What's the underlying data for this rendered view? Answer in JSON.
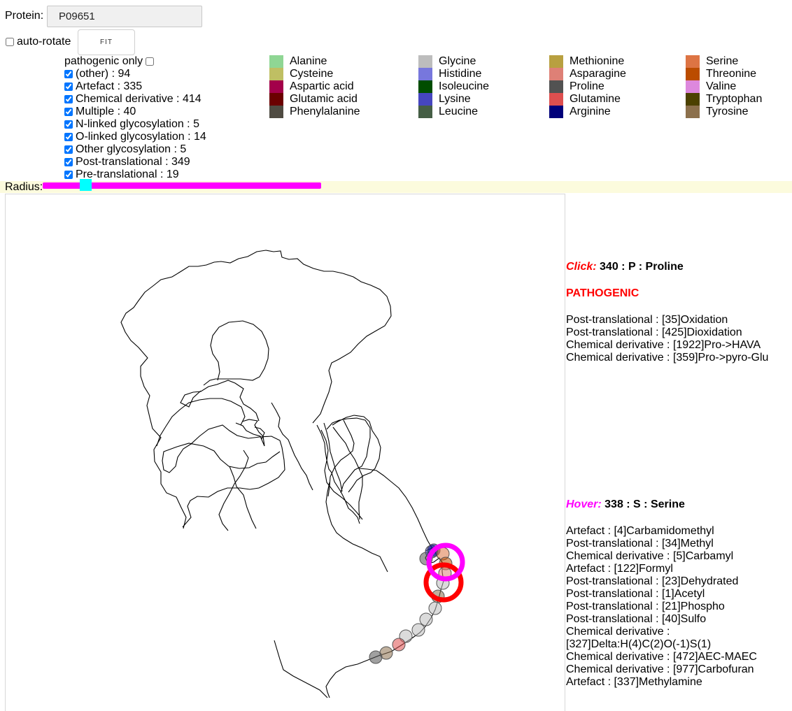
{
  "protein": {
    "label": "Protein:",
    "value": "P09651"
  },
  "autorotate": {
    "label": "auto-rotate",
    "checked": false
  },
  "fit_button": {
    "label": "FIT"
  },
  "filters": {
    "pathogenic_only_label": "pathogenic only",
    "items": [
      {
        "label": "(other) : 94",
        "checked": true
      },
      {
        "label": "Artefact : 335",
        "checked": true
      },
      {
        "label": "Chemical derivative : 414",
        "checked": true
      },
      {
        "label": "Multiple : 40",
        "checked": true
      },
      {
        "label": "N-linked glycosylation : 5",
        "checked": true
      },
      {
        "label": "O-linked glycosylation : 14",
        "checked": true
      },
      {
        "label": "Other glycosylation : 5",
        "checked": true
      },
      {
        "label": "Post-translational : 349",
        "checked": true
      },
      {
        "label": "Pre-translational : 19",
        "checked": true
      }
    ]
  },
  "legend": {
    "amino_acids": [
      {
        "name": "Alanine",
        "color": "#8fd694"
      },
      {
        "name": "Cysteine",
        "color": "#bfbf63"
      },
      {
        "name": "Aspartic acid",
        "color": "#a3004a"
      },
      {
        "name": "Glutamic acid",
        "color": "#6b0000"
      },
      {
        "name": "Phenylalanine",
        "color": "#4f4b42"
      },
      {
        "name": "Glycine",
        "color": "#bdbdbd"
      },
      {
        "name": "Histidine",
        "color": "#7777dd"
      },
      {
        "name": "Isoleucine",
        "color": "#004d00"
      },
      {
        "name": "Lysine",
        "color": "#4646bf"
      },
      {
        "name": "Leucine",
        "color": "#455e45"
      },
      {
        "name": "Methionine",
        "color": "#b8a040"
      },
      {
        "name": "Asparagine",
        "color": "#de8076"
      },
      {
        "name": "Proline",
        "color": "#525252"
      },
      {
        "name": "Glutamine",
        "color": "#de4f4f"
      },
      {
        "name": "Arginine",
        "color": "#00007a"
      },
      {
        "name": "Serine",
        "color": "#dd7444"
      },
      {
        "name": "Threonine",
        "color": "#bb4c00"
      },
      {
        "name": "Valine",
        "color": "#dd88dd"
      },
      {
        "name": "Tryptophan",
        "color": "#4c4100"
      },
      {
        "name": "Tyrosine",
        "color": "#8c704c"
      }
    ]
  },
  "radius": {
    "label": "Radius:",
    "value_fraction": 0.16
  },
  "click_info": {
    "tag": "Click:",
    "residue": "340 : P : Proline",
    "pathogenic": "PATHOGENIC",
    "mods": [
      "Post-translational : [35]Oxidation",
      "Post-translational : [425]Dioxidation",
      "Chemical derivative : [1922]Pro->HAVA",
      "Chemical derivative : [359]Pro->pyro-Glu"
    ]
  },
  "hover_info": {
    "tag": "Hover:",
    "residue": "338 : S : Serine",
    "mods": [
      "Artefact : [4]Carbamidomethyl",
      "Post-translational : [34]Methyl",
      "Chemical derivative : [5]Carbamyl",
      "Artefact : [122]Formyl",
      "Post-translational : [23]Dehydrated",
      "Post-translational : [1]Acetyl",
      "Post-translational : [21]Phospho",
      "Post-translational : [40]Sulfo",
      "Chemical derivative : [327]Delta:H(4)C(2)O(-1)S(1)",
      "Chemical derivative : [472]AEC-MAEC",
      "Chemical derivative : [977]Carbofuran",
      "Artefact : [337]Methylamine"
    ]
  },
  "colors": {
    "click_ring": "#ff0000",
    "hover_ring": "#ff00ff",
    "backbone": "#000000"
  }
}
